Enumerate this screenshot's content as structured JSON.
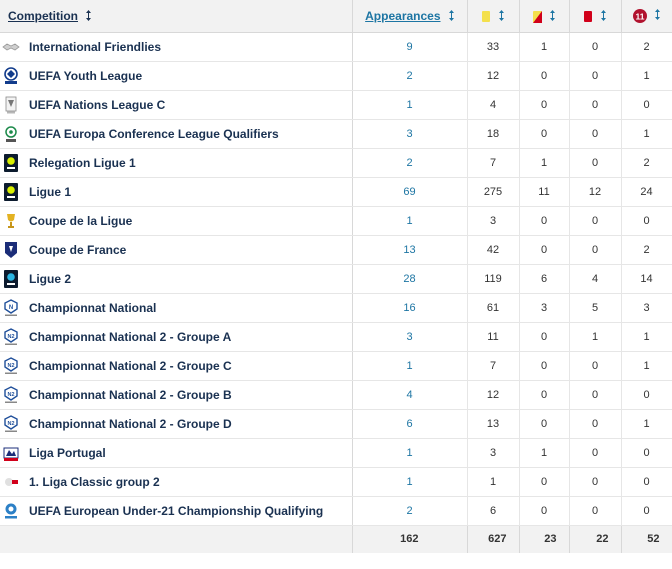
{
  "header": {
    "competition": "Competition",
    "appearances": "Appearances",
    "yellow_card": "yellow-card-icon",
    "second_yellow_card": "second-yellow-card-icon",
    "red_card": "red-card-icon",
    "penalty_badge": "11",
    "sort": "sort-arrows-icon"
  },
  "colors": {
    "header_bg": "#f2f2f2",
    "link_dark": "#1a3151",
    "link_blue": "#1d75a3",
    "yellow": "#f4e04d",
    "red": "#d1001a"
  },
  "rows": [
    {
      "logo": "international-friendlies-logo",
      "name": "International Friendlies",
      "apps": "9",
      "y": "33",
      "yr": "1",
      "r": "0",
      "pen": "2"
    },
    {
      "logo": "uefa-youth-league-logo",
      "name": "UEFA Youth League",
      "apps": "2",
      "y": "12",
      "yr": "0",
      "r": "0",
      "pen": "1"
    },
    {
      "logo": "uefa-nations-league-logo",
      "name": "UEFA Nations League C",
      "apps": "1",
      "y": "4",
      "yr": "0",
      "r": "0",
      "pen": "0"
    },
    {
      "logo": "uefa-conference-league-logo",
      "name": "UEFA Europa Conference League Qualifiers",
      "apps": "3",
      "y": "18",
      "yr": "0",
      "r": "0",
      "pen": "1"
    },
    {
      "logo": "ligue-1-logo",
      "name": "Relegation Ligue 1",
      "apps": "2",
      "y": "7",
      "yr": "1",
      "r": "0",
      "pen": "2"
    },
    {
      "logo": "ligue-1-logo",
      "name": "Ligue 1",
      "apps": "69",
      "y": "275",
      "yr": "11",
      "r": "12",
      "pen": "24"
    },
    {
      "logo": "coupe-de-la-ligue-logo",
      "name": "Coupe de la Ligue",
      "apps": "1",
      "y": "3",
      "yr": "0",
      "r": "0",
      "pen": "0"
    },
    {
      "logo": "coupe-de-france-logo",
      "name": "Coupe de France",
      "apps": "13",
      "y": "42",
      "yr": "0",
      "r": "0",
      "pen": "2"
    },
    {
      "logo": "ligue-2-logo",
      "name": "Ligue 2",
      "apps": "28",
      "y": "119",
      "yr": "6",
      "r": "4",
      "pen": "14"
    },
    {
      "logo": "championnat-national-logo",
      "name": "Championnat National",
      "apps": "16",
      "y": "61",
      "yr": "3",
      "r": "5",
      "pen": "3"
    },
    {
      "logo": "national-2-logo",
      "name": "Championnat National 2 - Groupe A",
      "apps": "3",
      "y": "11",
      "yr": "0",
      "r": "1",
      "pen": "1"
    },
    {
      "logo": "national-2-logo",
      "name": "Championnat National 2 - Groupe C",
      "apps": "1",
      "y": "7",
      "yr": "0",
      "r": "0",
      "pen": "1"
    },
    {
      "logo": "national-2-logo",
      "name": "Championnat National 2 - Groupe B",
      "apps": "4",
      "y": "12",
      "yr": "0",
      "r": "0",
      "pen": "0"
    },
    {
      "logo": "national-2-logo",
      "name": "Championnat National 2 - Groupe D",
      "apps": "6",
      "y": "13",
      "yr": "0",
      "r": "0",
      "pen": "1"
    },
    {
      "logo": "liga-portugal-logo",
      "name": "Liga Portugal",
      "apps": "1",
      "y": "3",
      "yr": "1",
      "r": "0",
      "pen": "0"
    },
    {
      "logo": "liga-classic-logo",
      "name": "1. Liga Classic group 2",
      "apps": "1",
      "y": "1",
      "yr": "0",
      "r": "0",
      "pen": "0"
    },
    {
      "logo": "uefa-u21-logo",
      "name": "UEFA European Under-21 Championship Qualifying",
      "apps": "2",
      "y": "6",
      "yr": "0",
      "r": "0",
      "pen": "0"
    }
  ],
  "totals": {
    "apps": "162",
    "y": "627",
    "yr": "23",
    "r": "22",
    "pen": "52"
  }
}
